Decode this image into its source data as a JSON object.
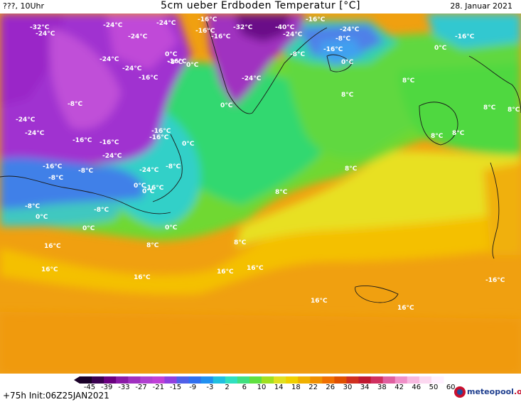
{
  "header": {
    "left": "???, 10Uhr",
    "title": "5cm ueber Erdboden Temperatur [°C]",
    "right": "28. Januar 2021"
  },
  "footer": {
    "run": "+75h Init:06Z25JAN2021",
    "brand_main": "meteopool",
    "brand_tld": ".org"
  },
  "legend": {
    "ticks": [
      "-45",
      "-39",
      "-33",
      "-27",
      "-21",
      "-15",
      "-9",
      "-3",
      "2",
      "6",
      "10",
      "14",
      "18",
      "22",
      "26",
      "30",
      "34",
      "38",
      "42",
      "46",
      "50",
      "60"
    ],
    "colors": [
      "#1a0028",
      "#3a0050",
      "#6a0080",
      "#8a1aa6",
      "#a030c0",
      "#b040d0",
      "#c040d8",
      "#9040e0",
      "#5060e8",
      "#3070f0",
      "#2090f0",
      "#20c0e0",
      "#30e0c0",
      "#40e080",
      "#60e040",
      "#a0e020",
      "#e0e020",
      "#f0d000",
      "#f0b000",
      "#f09000",
      "#f07000",
      "#e05000",
      "#d03020",
      "#c01830",
      "#d03060",
      "#e060a0",
      "#f090c8",
      "#f8b8e0",
      "#fcd8f0",
      "#fff0ff"
    ]
  },
  "map": {
    "labels": [
      {
        "t": "-32°C"
      },
      {
        "t": "-24°C"
      },
      {
        "t": "-24°C"
      },
      {
        "t": "-24°C"
      },
      {
        "t": "-24°C"
      },
      {
        "t": "-16°C"
      },
      {
        "t": "-16°C"
      },
      {
        "t": "-32°C"
      },
      {
        "t": "-16°C"
      },
      {
        "t": "-40°C"
      },
      {
        "t": "-24°C"
      },
      {
        "t": "-16°C"
      },
      {
        "t": "0°C"
      },
      {
        "t": "0°C"
      },
      {
        "t": "-8°C"
      },
      {
        "t": "-8°C"
      },
      {
        "t": "0°C"
      },
      {
        "t": "-16°C"
      },
      {
        "t": "-24°C"
      },
      {
        "t": "-24°C"
      },
      {
        "t": "-16°C"
      },
      {
        "t": "0°C"
      },
      {
        "t": "0°C"
      },
      {
        "t": "-16°C"
      },
      {
        "t": "-8°C"
      },
      {
        "t": "-24°C"
      },
      {
        "t": "-8°C"
      },
      {
        "t": "0°C"
      },
      {
        "t": "-16°C"
      },
      {
        "t": "-24°C"
      },
      {
        "t": "-24°C"
      },
      {
        "t": "-16°C"
      },
      {
        "t": "0°C"
      },
      {
        "t": "-16°C"
      },
      {
        "t": "-24°C"
      },
      {
        "t": "-16°C"
      },
      {
        "t": "-8°C"
      },
      {
        "t": "-8°C"
      },
      {
        "t": "-24°C"
      },
      {
        "t": "-16°C"
      },
      {
        "t": "0°C"
      },
      {
        "t": "-8°C"
      },
      {
        "t": "-8°C"
      },
      {
        "t": "0°C"
      },
      {
        "t": "-8°C"
      },
      {
        "t": "0°C"
      },
      {
        "t": "0°C"
      },
      {
        "t": "8°C"
      },
      {
        "t": "8°C"
      },
      {
        "t": "8°C"
      },
      {
        "t": "8°C"
      },
      {
        "t": "8°C"
      },
      {
        "t": "8°C"
      },
      {
        "t": "8°C"
      },
      {
        "t": "8°C"
      },
      {
        "t": "8°C"
      },
      {
        "t": "8°C"
      },
      {
        "t": "16°C"
      },
      {
        "t": "16°C"
      },
      {
        "t": "16°C"
      },
      {
        "t": "16°C"
      },
      {
        "t": "16°C"
      },
      {
        "t": "16°C"
      },
      {
        "t": "16°C"
      },
      {
        "t": "-16°C"
      },
      {
        "t": "-24°C"
      },
      {
        "t": "-16°C"
      },
      {
        "t": "-16°C"
      }
    ]
  }
}
